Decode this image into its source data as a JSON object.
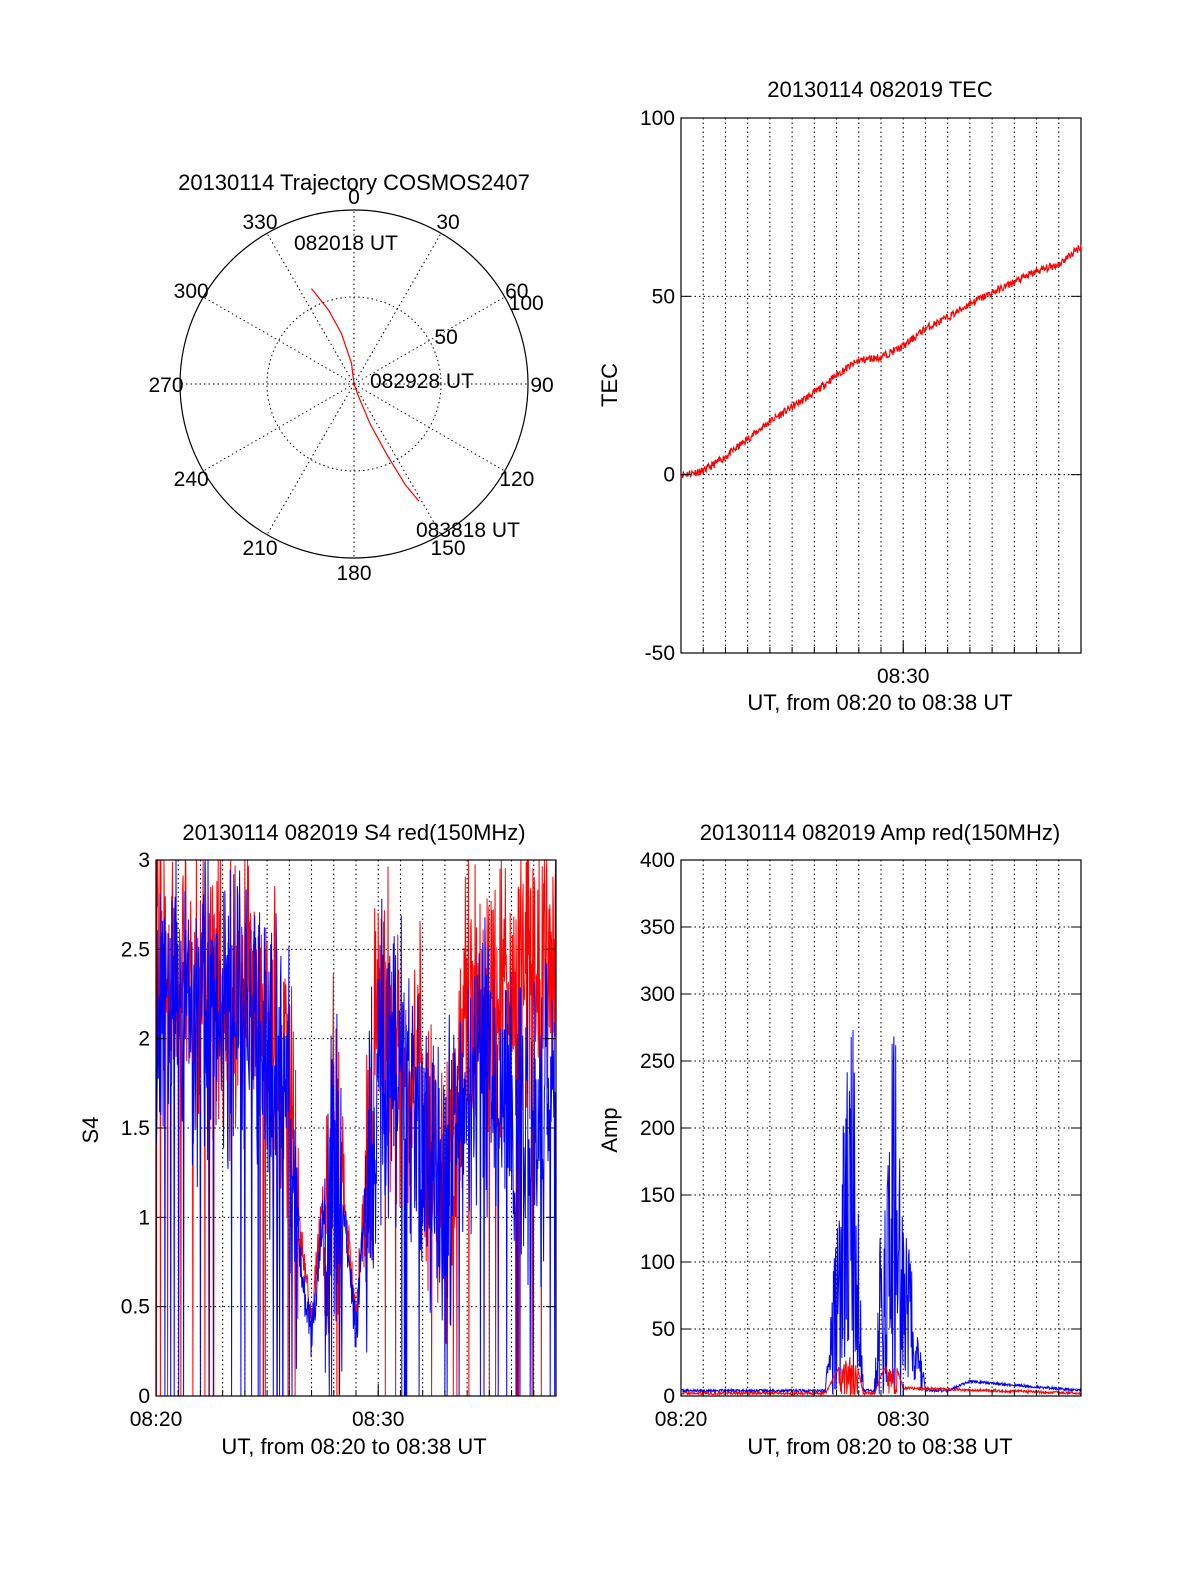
{
  "chart_data": [
    {
      "type": "polar",
      "title": "20130114 Trajectory COSMOS2407",
      "angle_labels": [
        "0",
        "30",
        "60",
        "90",
        "120",
        "150",
        "180",
        "210",
        "240",
        "270",
        "300",
        "330"
      ],
      "radial_labels": [
        "50",
        "100"
      ],
      "series": [
        {
          "color": "#ff0000",
          "points": [
            [
              336,
              60
            ],
            [
              341,
              45
            ],
            [
              346,
              30
            ],
            [
              353,
              12
            ],
            [
              0,
              0
            ],
            [
              160,
              8
            ],
            [
              158,
              25
            ],
            [
              155,
              45
            ],
            [
              153,
              65
            ],
            [
              151,
              77
            ]
          ]
        }
      ],
      "annotations": [
        "082018 UT",
        "082928 UT",
        "083818 UT"
      ]
    },
    {
      "type": "line",
      "title": "20130114 082019 TEC",
      "xlabel": "UT, from 08:20 to 08:38 UT",
      "ylabel": "TEC",
      "xlim": [
        "08:20",
        "08:38"
      ],
      "ylim": [
        -50,
        100
      ],
      "x_ticks": [
        "08:30"
      ],
      "y_ticks": [
        "-50",
        "0",
        "50",
        "100"
      ],
      "grid": true,
      "series": [
        {
          "color": "#ff0000",
          "x": [
            "08:20",
            "08:21",
            "08:22",
            "08:23",
            "08:24",
            "08:25",
            "08:26",
            "08:27",
            "08:28",
            "08:29",
            "08:30",
            "08:31",
            "08:32",
            "08:33",
            "08:34",
            "08:35",
            "08:36",
            "08:37",
            "08:38"
          ],
          "values": [
            0,
            1,
            5,
            10,
            15,
            19,
            23,
            28,
            32,
            33,
            36,
            41,
            44,
            48,
            51,
            54,
            57,
            59,
            64
          ]
        }
      ]
    },
    {
      "type": "line",
      "title": "20130114 082019 S4 red(150MHz)",
      "xlabel": "UT, from 08:20 to 08:38 UT",
      "ylabel": "S4",
      "xlim": [
        "08:20",
        "08:38"
      ],
      "ylim": [
        0,
        3
      ],
      "x_ticks": [
        "08:20",
        "08:30"
      ],
      "y_ticks": [
        "0",
        "0.5",
        "1",
        "1.5",
        "2",
        "2.5",
        "3"
      ],
      "grid": true,
      "series": [
        {
          "color": "#ff0000",
          "x": [
            "08:20",
            "08:22",
            "08:24",
            "08:26",
            "08:26.5",
            "08:27",
            "08:28",
            "08:29",
            "08:30",
            "08:31",
            "08:32",
            "08:33",
            "08:34",
            "08:36",
            "08:38"
          ],
          "values": [
            2.6,
            2.5,
            2.4,
            2.0,
            0.8,
            0.3,
            1.6,
            0.3,
            2.3,
            2.2,
            1.8,
            1.2,
            2.3,
            2.4,
            2.5
          ]
        },
        {
          "color": "#0000ff",
          "x": [
            "08:20",
            "08:22",
            "08:24",
            "08:26",
            "08:26.5",
            "08:27",
            "08:28",
            "08:29",
            "08:30",
            "08:31",
            "08:32",
            "08:33",
            "08:34",
            "08:36",
            "08:38"
          ],
          "values": [
            2.4,
            2.3,
            2.2,
            1.9,
            0.6,
            0.2,
            1.5,
            0.2,
            2.1,
            2.0,
            1.7,
            1.3,
            2.0,
            1.8,
            1.7
          ]
        }
      ]
    },
    {
      "type": "line",
      "title": "20130114 082019 Amp red(150MHz)",
      "xlabel": "UT, from 08:20 to 08:38 UT",
      "ylabel": "Amp",
      "xlim": [
        "08:20",
        "08:38"
      ],
      "ylim": [
        0,
        400
      ],
      "x_ticks": [
        "08:20",
        "08:30"
      ],
      "y_ticks": [
        "0",
        "50",
        "100",
        "150",
        "200",
        "250",
        "300",
        "350",
        "400"
      ],
      "grid": true,
      "series": [
        {
          "color": "#0000ff",
          "x": [
            "08:20",
            "08:26.5",
            "08:27.1",
            "08:27.7",
            "08:28.2",
            "08:28.7",
            "08:29.1",
            "08:29.6",
            "08:30",
            "08:31",
            "08:32",
            "08:33",
            "08:38"
          ],
          "values": [
            3,
            3,
            160,
            310,
            3,
            3,
            180,
            290,
            150,
            3,
            3,
            10,
            3
          ]
        },
        {
          "color": "#ff0000",
          "x": [
            "08:20",
            "08:26.5",
            "08:27.1",
            "08:27.7",
            "08:28.2",
            "08:28.7",
            "08:29.1",
            "08:29.6",
            "08:30",
            "08:38"
          ],
          "values": [
            1,
            1,
            20,
            38,
            1,
            1,
            18,
            25,
            5,
            1
          ]
        }
      ]
    }
  ]
}
